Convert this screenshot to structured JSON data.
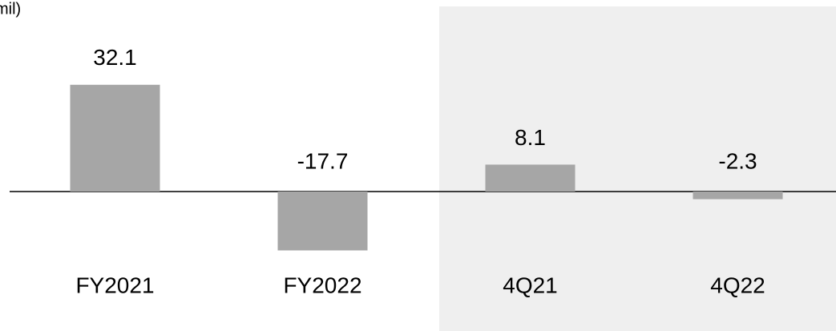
{
  "chart_data": {
    "type": "bar",
    "unit_label": "mil)",
    "categories": [
      "FY2021",
      "FY2022",
      "4Q21",
      "4Q22"
    ],
    "values": [
      32.1,
      -17.7,
      8.1,
      -2.3
    ],
    "color": "#a6a6a6"
  }
}
